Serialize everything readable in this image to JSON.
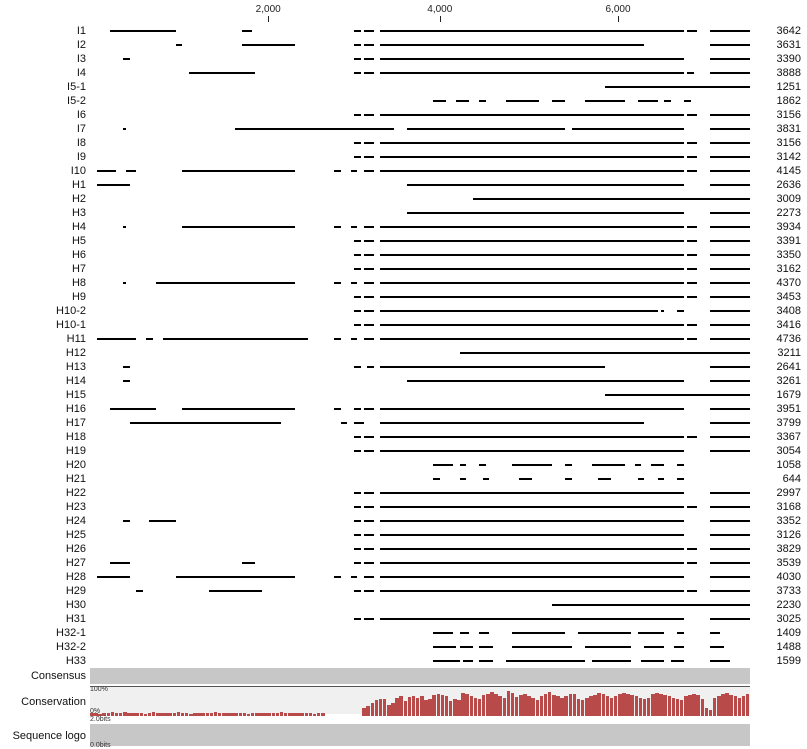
{
  "axis": {
    "ticks": [
      {
        "label": "2,000",
        "pos": 0.27
      },
      {
        "label": "4,000",
        "pos": 0.53
      },
      {
        "label": "6,000",
        "pos": 0.8
      }
    ],
    "domain_max": 7500
  },
  "colors": {
    "segment": "#000000",
    "cons_bar": "#b84a4a",
    "panel_grey": "#c7c7c7",
    "panel_light": "#f0f0f0",
    "bg": "#ffffff"
  },
  "tracks": [
    {
      "label": "I1",
      "value": "3642",
      "segs": [
        [
          0.03,
          0.13
        ],
        [
          0.23,
          0.245
        ],
        [
          0.4,
          0.41
        ],
        [
          0.415,
          0.43
        ],
        [
          0.44,
          0.9
        ],
        [
          0.905,
          0.92
        ],
        [
          0.94,
          1.0
        ]
      ]
    },
    {
      "label": "I2",
      "value": "3631",
      "segs": [
        [
          0.13,
          0.14
        ],
        [
          0.23,
          0.31
        ],
        [
          0.4,
          0.41
        ],
        [
          0.415,
          0.43
        ],
        [
          0.44,
          0.84
        ],
        [
          0.94,
          1.0
        ]
      ]
    },
    {
      "label": "I3",
      "value": "3390",
      "segs": [
        [
          0.05,
          0.06
        ],
        [
          0.4,
          0.41
        ],
        [
          0.415,
          0.43
        ],
        [
          0.44,
          0.9
        ],
        [
          0.94,
          1.0
        ]
      ]
    },
    {
      "label": "I4",
      "value": "3888",
      "segs": [
        [
          0.15,
          0.25
        ],
        [
          0.4,
          0.41
        ],
        [
          0.415,
          0.43
        ],
        [
          0.44,
          0.9
        ],
        [
          0.905,
          0.915
        ],
        [
          0.94,
          1.0
        ]
      ]
    },
    {
      "label": "I5-1",
      "value": "1251",
      "segs": [
        [
          0.78,
          1.0
        ]
      ]
    },
    {
      "label": "I5-2",
      "value": "1862",
      "segs": [
        [
          0.52,
          0.54
        ],
        [
          0.555,
          0.575
        ],
        [
          0.59,
          0.6
        ],
        [
          0.63,
          0.68
        ],
        [
          0.7,
          0.72
        ],
        [
          0.75,
          0.81
        ],
        [
          0.83,
          0.86
        ],
        [
          0.87,
          0.88
        ],
        [
          0.9,
          0.91
        ]
      ]
    },
    {
      "label": "I6",
      "value": "3156",
      "segs": [
        [
          0.4,
          0.41
        ],
        [
          0.415,
          0.43
        ],
        [
          0.44,
          0.9
        ],
        [
          0.905,
          0.92
        ],
        [
          0.94,
          1.0
        ]
      ]
    },
    {
      "label": "I7",
      "value": "3831",
      "segs": [
        [
          0.05,
          0.055
        ],
        [
          0.22,
          0.46
        ],
        [
          0.48,
          0.72
        ],
        [
          0.73,
          0.9
        ],
        [
          0.94,
          1.0
        ]
      ]
    },
    {
      "label": "I8",
      "value": "3156",
      "segs": [
        [
          0.4,
          0.41
        ],
        [
          0.415,
          0.43
        ],
        [
          0.44,
          0.9
        ],
        [
          0.905,
          0.92
        ],
        [
          0.94,
          1.0
        ]
      ]
    },
    {
      "label": "I9",
      "value": "3142",
      "segs": [
        [
          0.4,
          0.41
        ],
        [
          0.415,
          0.43
        ],
        [
          0.44,
          0.9
        ],
        [
          0.905,
          0.92
        ],
        [
          0.94,
          1.0
        ]
      ]
    },
    {
      "label": "I10",
      "value": "4145",
      "segs": [
        [
          0.01,
          0.04
        ],
        [
          0.055,
          0.07
        ],
        [
          0.14,
          0.31
        ],
        [
          0.37,
          0.38
        ],
        [
          0.395,
          0.405
        ],
        [
          0.415,
          0.43
        ],
        [
          0.44,
          0.9
        ],
        [
          0.905,
          0.92
        ],
        [
          0.94,
          1.0
        ]
      ]
    },
    {
      "label": "H1",
      "value": "2636",
      "segs": [
        [
          0.01,
          0.06
        ],
        [
          0.48,
          0.9
        ],
        [
          0.94,
          1.0
        ]
      ]
    },
    {
      "label": "H2",
      "value": "3009",
      "segs": [
        [
          0.58,
          1.0
        ]
      ]
    },
    {
      "label": "H3",
      "value": "2273",
      "segs": [
        [
          0.48,
          0.9
        ],
        [
          0.94,
          1.0
        ]
      ]
    },
    {
      "label": "H4",
      "value": "3934",
      "segs": [
        [
          0.05,
          0.055
        ],
        [
          0.14,
          0.31
        ],
        [
          0.37,
          0.38
        ],
        [
          0.395,
          0.405
        ],
        [
          0.415,
          0.43
        ],
        [
          0.44,
          0.9
        ],
        [
          0.905,
          0.92
        ],
        [
          0.94,
          1.0
        ]
      ]
    },
    {
      "label": "H5",
      "value": "3391",
      "segs": [
        [
          0.4,
          0.41
        ],
        [
          0.415,
          0.43
        ],
        [
          0.44,
          0.9
        ],
        [
          0.905,
          0.92
        ],
        [
          0.94,
          1.0
        ]
      ]
    },
    {
      "label": "H6",
      "value": "3350",
      "segs": [
        [
          0.4,
          0.41
        ],
        [
          0.415,
          0.43
        ],
        [
          0.44,
          0.9
        ],
        [
          0.905,
          0.92
        ],
        [
          0.94,
          1.0
        ]
      ]
    },
    {
      "label": "H7",
      "value": "3162",
      "segs": [
        [
          0.4,
          0.41
        ],
        [
          0.415,
          0.43
        ],
        [
          0.44,
          0.9
        ],
        [
          0.905,
          0.92
        ],
        [
          0.94,
          1.0
        ]
      ]
    },
    {
      "label": "H8",
      "value": "4370",
      "segs": [
        [
          0.05,
          0.055
        ],
        [
          0.1,
          0.31
        ],
        [
          0.37,
          0.38
        ],
        [
          0.395,
          0.405
        ],
        [
          0.415,
          0.43
        ],
        [
          0.44,
          0.9
        ],
        [
          0.905,
          0.92
        ],
        [
          0.94,
          1.0
        ]
      ]
    },
    {
      "label": "H9",
      "value": "3453",
      "segs": [
        [
          0.4,
          0.41
        ],
        [
          0.415,
          0.43
        ],
        [
          0.44,
          0.9
        ],
        [
          0.905,
          0.92
        ],
        [
          0.94,
          1.0
        ]
      ]
    },
    {
      "label": "H10-2",
      "value": "3408",
      "segs": [
        [
          0.4,
          0.41
        ],
        [
          0.415,
          0.43
        ],
        [
          0.44,
          0.86
        ],
        [
          0.865,
          0.87
        ],
        [
          0.89,
          0.9
        ],
        [
          0.94,
          1.0
        ]
      ]
    },
    {
      "label": "H10-1",
      "value": "3416",
      "segs": [
        [
          0.4,
          0.41
        ],
        [
          0.415,
          0.43
        ],
        [
          0.44,
          0.9
        ],
        [
          0.905,
          0.92
        ],
        [
          0.94,
          1.0
        ]
      ]
    },
    {
      "label": "H11",
      "value": "4736",
      "segs": [
        [
          0.01,
          0.07
        ],
        [
          0.085,
          0.095
        ],
        [
          0.11,
          0.33
        ],
        [
          0.37,
          0.38
        ],
        [
          0.395,
          0.405
        ],
        [
          0.415,
          0.43
        ],
        [
          0.44,
          0.9
        ],
        [
          0.905,
          0.92
        ],
        [
          0.94,
          1.0
        ]
      ]
    },
    {
      "label": "H12",
      "value": "3211",
      "segs": [
        [
          0.56,
          1.0
        ]
      ]
    },
    {
      "label": "H13",
      "value": "2641",
      "segs": [
        [
          0.05,
          0.06
        ],
        [
          0.4,
          0.41
        ],
        [
          0.42,
          0.43
        ],
        [
          0.44,
          0.78
        ],
        [
          0.94,
          1.0
        ]
      ]
    },
    {
      "label": "H14",
      "value": "3261",
      "segs": [
        [
          0.05,
          0.06
        ],
        [
          0.48,
          0.9
        ],
        [
          0.94,
          1.0
        ]
      ]
    },
    {
      "label": "H15",
      "value": "1679",
      "segs": [
        [
          0.78,
          1.0
        ]
      ]
    },
    {
      "label": "H16",
      "value": "3951",
      "segs": [
        [
          0.03,
          0.1
        ],
        [
          0.14,
          0.31
        ],
        [
          0.37,
          0.38
        ],
        [
          0.4,
          0.41
        ],
        [
          0.415,
          0.43
        ],
        [
          0.44,
          0.9
        ],
        [
          0.94,
          1.0
        ]
      ]
    },
    {
      "label": "H17",
      "value": "3799",
      "segs": [
        [
          0.06,
          0.29
        ],
        [
          0.38,
          0.39
        ],
        [
          0.4,
          0.415
        ],
        [
          0.44,
          0.84
        ],
        [
          0.94,
          1.0
        ]
      ]
    },
    {
      "label": "H18",
      "value": "3367",
      "segs": [
        [
          0.4,
          0.41
        ],
        [
          0.415,
          0.43
        ],
        [
          0.44,
          0.9
        ],
        [
          0.905,
          0.92
        ],
        [
          0.94,
          1.0
        ]
      ]
    },
    {
      "label": "H19",
      "value": "3054",
      "segs": [
        [
          0.4,
          0.41
        ],
        [
          0.415,
          0.43
        ],
        [
          0.44,
          0.9
        ],
        [
          0.94,
          1.0
        ]
      ]
    },
    {
      "label": "H20",
      "value": "1058",
      "segs": [
        [
          0.52,
          0.55
        ],
        [
          0.56,
          0.57
        ],
        [
          0.59,
          0.6
        ],
        [
          0.64,
          0.7
        ],
        [
          0.72,
          0.73
        ],
        [
          0.76,
          0.81
        ],
        [
          0.825,
          0.835
        ],
        [
          0.85,
          0.87
        ],
        [
          0.89,
          0.9
        ]
      ]
    },
    {
      "label": "H21",
      "value": "644",
      "segs": [
        [
          0.52,
          0.53
        ],
        [
          0.56,
          0.57
        ],
        [
          0.595,
          0.605
        ],
        [
          0.65,
          0.67
        ],
        [
          0.72,
          0.73
        ],
        [
          0.77,
          0.79
        ],
        [
          0.83,
          0.84
        ],
        [
          0.86,
          0.87
        ],
        [
          0.89,
          0.9
        ]
      ]
    },
    {
      "label": "H22",
      "value": "2997",
      "segs": [
        [
          0.4,
          0.41
        ],
        [
          0.415,
          0.43
        ],
        [
          0.44,
          0.9
        ],
        [
          0.94,
          1.0
        ]
      ]
    },
    {
      "label": "H23",
      "value": "3168",
      "segs": [
        [
          0.4,
          0.41
        ],
        [
          0.415,
          0.43
        ],
        [
          0.44,
          0.9
        ],
        [
          0.905,
          0.92
        ],
        [
          0.94,
          1.0
        ]
      ]
    },
    {
      "label": "H24",
      "value": "3352",
      "segs": [
        [
          0.05,
          0.06
        ],
        [
          0.09,
          0.13
        ],
        [
          0.4,
          0.41
        ],
        [
          0.415,
          0.43
        ],
        [
          0.44,
          0.9
        ],
        [
          0.94,
          1.0
        ]
      ]
    },
    {
      "label": "H25",
      "value": "3126",
      "segs": [
        [
          0.4,
          0.41
        ],
        [
          0.415,
          0.43
        ],
        [
          0.44,
          0.9
        ],
        [
          0.94,
          1.0
        ]
      ]
    },
    {
      "label": "H26",
      "value": "3829",
      "segs": [
        [
          0.4,
          0.41
        ],
        [
          0.415,
          0.43
        ],
        [
          0.44,
          0.9
        ],
        [
          0.905,
          0.92
        ],
        [
          0.94,
          1.0
        ]
      ]
    },
    {
      "label": "H27",
      "value": "3539",
      "segs": [
        [
          0.03,
          0.06
        ],
        [
          0.23,
          0.25
        ],
        [
          0.4,
          0.41
        ],
        [
          0.415,
          0.43
        ],
        [
          0.44,
          0.9
        ],
        [
          0.905,
          0.92
        ],
        [
          0.94,
          1.0
        ]
      ]
    },
    {
      "label": "H28",
      "value": "4030",
      "segs": [
        [
          0.01,
          0.06
        ],
        [
          0.13,
          0.31
        ],
        [
          0.37,
          0.38
        ],
        [
          0.395,
          0.405
        ],
        [
          0.415,
          0.43
        ],
        [
          0.44,
          0.9
        ],
        [
          0.94,
          1.0
        ]
      ]
    },
    {
      "label": "H29",
      "value": "3733",
      "segs": [
        [
          0.07,
          0.08
        ],
        [
          0.18,
          0.26
        ],
        [
          0.4,
          0.41
        ],
        [
          0.415,
          0.43
        ],
        [
          0.44,
          0.9
        ],
        [
          0.905,
          0.92
        ],
        [
          0.94,
          1.0
        ]
      ]
    },
    {
      "label": "H30",
      "value": "2230",
      "segs": [
        [
          0.7,
          1.0
        ]
      ]
    },
    {
      "label": "H31",
      "value": "3025",
      "segs": [
        [
          0.4,
          0.41
        ],
        [
          0.415,
          0.43
        ],
        [
          0.44,
          0.9
        ],
        [
          0.94,
          1.0
        ]
      ]
    },
    {
      "label": "H32-1",
      "value": "1409",
      "segs": [
        [
          0.52,
          0.55
        ],
        [
          0.56,
          0.575
        ],
        [
          0.59,
          0.605
        ],
        [
          0.64,
          0.72
        ],
        [
          0.74,
          0.82
        ],
        [
          0.83,
          0.87
        ],
        [
          0.89,
          0.9
        ],
        [
          0.94,
          0.955
        ]
      ]
    },
    {
      "label": "H32-2",
      "value": "1488",
      "segs": [
        [
          0.52,
          0.555
        ],
        [
          0.56,
          0.58
        ],
        [
          0.59,
          0.61
        ],
        [
          0.64,
          0.73
        ],
        [
          0.75,
          0.82
        ],
        [
          0.84,
          0.87
        ],
        [
          0.885,
          0.9
        ],
        [
          0.94,
          0.96
        ]
      ]
    },
    {
      "label": "H33",
      "value": "1599",
      "segs": [
        [
          0.52,
          0.56
        ],
        [
          0.565,
          0.58
        ],
        [
          0.59,
          0.61
        ],
        [
          0.63,
          0.75
        ],
        [
          0.76,
          0.82
        ],
        [
          0.835,
          0.87
        ],
        [
          0.88,
          0.9
        ],
        [
          0.94,
          0.97
        ]
      ]
    }
  ],
  "panels": {
    "consensus_label": "Consensus",
    "conservation_label": "Conservation",
    "seqlogo_label": "Sequence logo",
    "cons_scale_top": "100%",
    "cons_scale_bot": "0%",
    "bits_top": "2.0bits",
    "bits_bot": "0.0bits"
  },
  "conservation_bars": {
    "n": 160,
    "heights": [
      12,
      10,
      8,
      11,
      9,
      13,
      12,
      10,
      14,
      11,
      9,
      12,
      10,
      8,
      11,
      13,
      10,
      9,
      12,
      11,
      10,
      13,
      12,
      9,
      8,
      11,
      10,
      12,
      9,
      11,
      13,
      10,
      12,
      11,
      9,
      10,
      12,
      11,
      8,
      10,
      12,
      11,
      9,
      11,
      10,
      12,
      13,
      11,
      10,
      12,
      9,
      10,
      11,
      12,
      8,
      9,
      10,
      0,
      0,
      0,
      0,
      0,
      0,
      0,
      0,
      0,
      28,
      35,
      48,
      58,
      62,
      60,
      40,
      45,
      64,
      70,
      55,
      68,
      72,
      66,
      70,
      58,
      62,
      75,
      80,
      76,
      70,
      55,
      60,
      58,
      82,
      78,
      70,
      66,
      62,
      74,
      80,
      84,
      78,
      70,
      64,
      88,
      82,
      68,
      74,
      78,
      70,
      66,
      58,
      72,
      80,
      84,
      76,
      70,
      66,
      72,
      78,
      80,
      60,
      58,
      64,
      70,
      76,
      82,
      78,
      70,
      66,
      72,
      80,
      82,
      78,
      74,
      70,
      66,
      60,
      64,
      78,
      82,
      80,
      76,
      70,
      66,
      62,
      58,
      70,
      76,
      80,
      74,
      60,
      30,
      22,
      64,
      72,
      78,
      82,
      76,
      70,
      66,
      72,
      78
    ]
  }
}
